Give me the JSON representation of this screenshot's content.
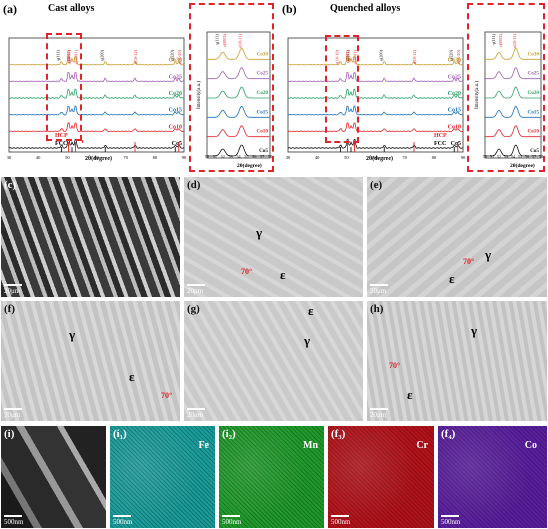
{
  "panel_a": {
    "label": "(a)",
    "title": "Cast alloys",
    "series": [
      "Co30",
      "Co25",
      "Co20",
      "Co15",
      "Co10",
      "Co5"
    ],
    "colors": [
      "#c8a032",
      "#a25fb5",
      "#2ca266",
      "#1a6fb8",
      "#e0242a",
      "#111111"
    ],
    "xlabel": "2θ(degree)",
    "ticks": [
      "30",
      "40",
      "50",
      "60",
      "70",
      "80",
      "90"
    ],
    "peaks": [
      "γ(111)",
      "ε(10-10)",
      "ε(0002)",
      "ε(10-11)",
      "γ(200)",
      "ε(10-12)",
      "γ(220)",
      "ε(11-20)"
    ],
    "legend_hcp": "HCP",
    "legend_fcc": "FCC",
    "ylabel": "Intensity(a.u.)",
    "zoom_peaks": [
      "γ(111)",
      "ε(0002)",
      "ε(10-11)"
    ],
    "zoom_ticks": [
      "50",
      "51",
      "52",
      "53",
      "54",
      "55",
      "56",
      "57",
      "58"
    ],
    "zoom_xlabel": "2θ(degree)"
  },
  "panel_b": {
    "label": "(b)",
    "title": "Quenched alloys",
    "series": [
      "Co30",
      "Co25",
      "Co20",
      "Co15",
      "Co10",
      "Co5"
    ],
    "xlabel": "2θ(degree)",
    "ticks": [
      "30",
      "40",
      "50",
      "60",
      "70",
      "80",
      "90"
    ],
    "peaks": [
      "ε(10-10)",
      "γ(111)",
      "ε(0002)",
      "ε(10-11)",
      "γ(200)",
      "ε(10-12)",
      "γ(220)",
      "ε(11-20)"
    ],
    "legend_hcp": "HCP",
    "legend_fcc": "FCC",
    "ylabel": "Intensity(a.u.)",
    "zoom_peaks": [
      "γ(111)",
      "ε(0002)",
      "ε(10-11)"
    ],
    "zoom_ticks": [
      "50",
      "51",
      "52",
      "53",
      "54",
      "55",
      "56",
      "57",
      "58"
    ],
    "zoom_xlabel": "2θ(degree)"
  },
  "sem": {
    "c": {
      "tag": "(c)",
      "scale": "20μm"
    },
    "d": {
      "tag": "(d)",
      "scale": "20μm",
      "gamma": "γ",
      "eps": "ε",
      "angle": "70°"
    },
    "e": {
      "tag": "(e)",
      "scale": "20μm",
      "gamma": "γ",
      "eps": "ε",
      "angle": "70°"
    },
    "f": {
      "tag": "(f)",
      "scale": "20μm",
      "gamma": "γ",
      "eps": "ε",
      "angle": "70°"
    },
    "g": {
      "tag": "(g)",
      "scale": "20μm",
      "gamma": "γ",
      "eps": "ε"
    },
    "h": {
      "tag": "(h)",
      "scale": "20μm",
      "gamma": "γ",
      "eps": "ε",
      "angle": "70°"
    }
  },
  "eds": {
    "i": {
      "tag": "(i)",
      "scale": "500nm"
    },
    "i1": {
      "tag": "(i₁)",
      "element": "Fe",
      "scale": "500nm",
      "color": "#1a9c9a"
    },
    "i2": {
      "tag": "(i₂)",
      "element": "Mn",
      "scale": "500nm",
      "color": "#1f9a2a"
    },
    "f3": {
      "tag": "(f₃)",
      "element": "Cr",
      "scale": "500nm",
      "color": "#b3121a"
    },
    "f4": {
      "tag": "(f₄)",
      "element": "Co",
      "scale": "500nm",
      "color": "#5a1f9e"
    }
  }
}
